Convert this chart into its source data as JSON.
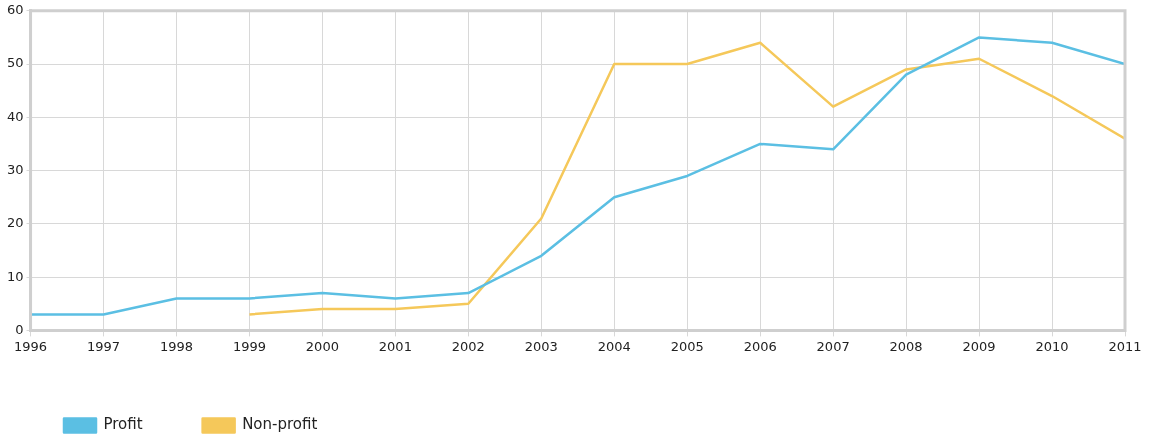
{
  "chart_data": {
    "type": "line",
    "x": [
      1996,
      1997,
      1998,
      1999,
      2000,
      2001,
      2002,
      2003,
      2004,
      2005,
      2006,
      2007,
      2008,
      2009,
      2010,
      2011
    ],
    "series": [
      {
        "name": "Profit",
        "color": "#5bbfe3",
        "values": [
          3,
          3,
          6,
          6,
          7,
          6,
          7,
          14,
          25,
          29,
          35,
          34,
          48,
          55,
          54,
          50
        ]
      },
      {
        "name": "Non-profit",
        "color": "#f5c85a",
        "values": [
          null,
          null,
          null,
          3,
          4,
          4,
          5,
          21,
          50,
          50,
          54,
          42,
          49,
          51,
          44,
          36
        ]
      }
    ],
    "xlim": [
      1996,
      2011
    ],
    "xticks": [
      1996,
      1997,
      1998,
      1999,
      2000,
      2001,
      2002,
      2003,
      2004,
      2005,
      2006,
      2007,
      2008,
      2009,
      2010,
      2011
    ],
    "ylim": [
      0,
      60
    ],
    "yticks": [
      0,
      10,
      20,
      30,
      40,
      50,
      60
    ],
    "grid": true,
    "legend": "bottom left",
    "marker": "none",
    "line_style": "solid"
  }
}
